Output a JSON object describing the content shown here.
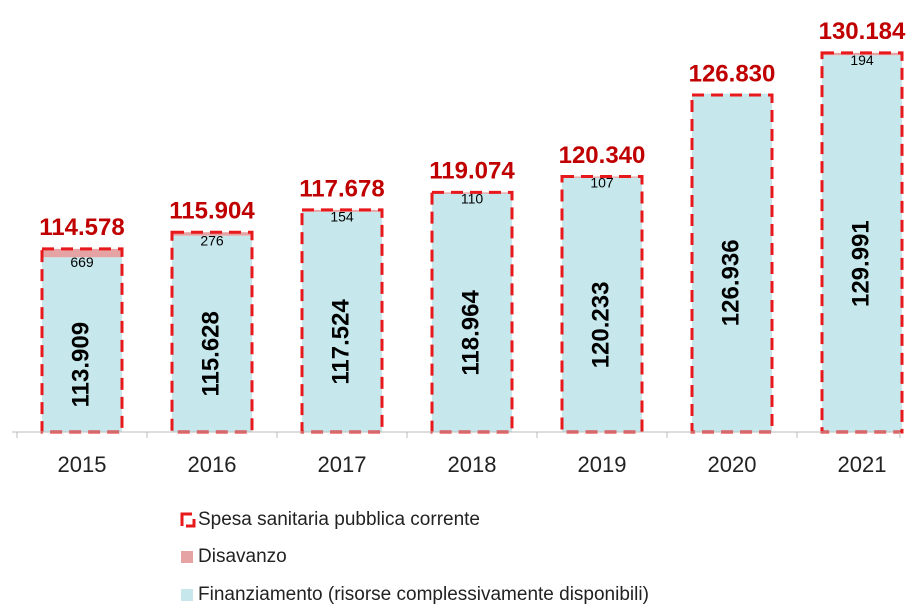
{
  "chart_data": {
    "type": "bar",
    "categories": [
      "2015",
      "2016",
      "2017",
      "2018",
      "2019",
      "2020",
      "2021"
    ],
    "series": [
      {
        "name": "Spesa sanitaria pubblica corrente",
        "color": "#e8191c",
        "values": [
          114578,
          115904,
          117678,
          119074,
          120340,
          126830,
          130184
        ],
        "value_labels": [
          "114.578",
          "115.904",
          "117.678",
          "119.074",
          "120.340",
          "126.830",
          "130.184"
        ]
      },
      {
        "name": "Disavanzo",
        "color": "#e6a3a3",
        "values": [
          669,
          276,
          154,
          110,
          107,
          null,
          194
        ]
      },
      {
        "name": "Finanziamento (risorse complessivamente disponibili)",
        "color": "#c6e8ec",
        "values": [
          113909,
          115628,
          117524,
          118964,
          120233,
          126936,
          129991
        ],
        "value_labels": [
          "113.909",
          "115.628",
          "117.524",
          "118.964",
          "120.233",
          "126.936",
          "129.991"
        ]
      }
    ],
    "ylim": [
      100000,
      132000
    ]
  }
}
